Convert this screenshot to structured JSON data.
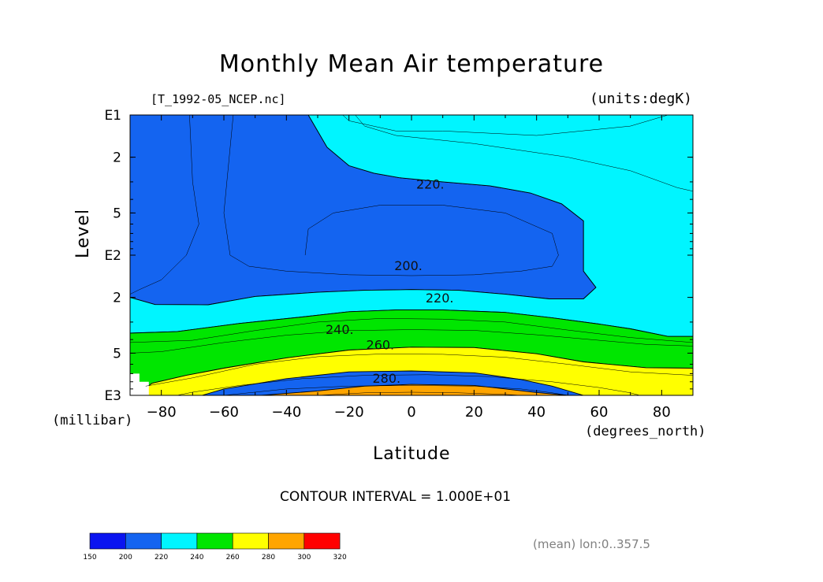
{
  "title": "Monthly Mean Air temperature",
  "file_label": "[T_1992-05_NCEP.nc]",
  "units_label": "(units:degK)",
  "y_axis_label": "Level",
  "y_units": "(millibar)",
  "x_axis_label": "Latitude",
  "x_units": "(degrees_north)",
  "contour_interval": "CONTOUR INTERVAL = 1.000E+01",
  "mean_note": "(mean) lon:0..357.5",
  "chart_data": {
    "type": "heatmap",
    "subtype": "filled contour",
    "title": "Monthly Mean Air temperature",
    "xlabel": "Latitude",
    "ylabel": "Level",
    "xlim": [
      -90,
      90
    ],
    "ylim_mb": [
      1000,
      10
    ],
    "y_scale": "log",
    "grid": false,
    "x_ticks": [
      -80,
      -60,
      -40,
      -20,
      0,
      20,
      40,
      60,
      80
    ],
    "x_tick_labels": [
      "−80",
      "−60",
      "−40",
      "−20",
      "0",
      "20",
      "40",
      "60",
      "80"
    ],
    "y_ticks": [
      {
        "value_mb": 10,
        "label": "E1"
      },
      {
        "value_mb": 20,
        "label": "2"
      },
      {
        "value_mb": 50,
        "label": "5"
      },
      {
        "value_mb": 100,
        "label": "E2"
      },
      {
        "value_mb": 200,
        "label": "2"
      },
      {
        "value_mb": 500,
        "label": "5"
      },
      {
        "value_mb": 1000,
        "label": "E3"
      }
    ],
    "contour_levels": [
      150,
      200,
      220,
      240,
      260,
      280,
      300,
      320
    ],
    "colorbar": {
      "labels": [
        "150",
        "200",
        "220",
        "240",
        "260",
        "280",
        "300",
        "320"
      ],
      "colors": [
        "#0a14f0",
        "#1464f0",
        "#00f5ff",
        "#00e600",
        "#ffff00",
        "#ffa500",
        "#ff0000"
      ],
      "placement": "bottom-left"
    },
    "contour_labels": [
      {
        "text": "220.",
        "lat": 6,
        "mb": 31
      },
      {
        "text": "200.",
        "lat": -1,
        "mb": 118
      },
      {
        "text": "220.",
        "lat": 9,
        "mb": 201
      },
      {
        "text": "240.",
        "lat": -23,
        "mb": 338
      },
      {
        "text": "260.",
        "lat": -10,
        "mb": 433
      },
      {
        "text": "280.",
        "lat": -8,
        "mb": 750
      }
    ],
    "bands": [
      {
        "value": 200,
        "color": "#0a14f0",
        "polygon": [
          [
            -90,
            10
          ],
          [
            -81,
            10
          ],
          [
            -79,
            14
          ],
          [
            -72,
            21
          ],
          [
            -75,
            37
          ],
          [
            -82,
            55
          ],
          [
            -90,
            66
          ]
        ]
      },
      {
        "value": 200,
        "color": "#0a14f0",
        "polygon": [
          [
            -19,
            100
          ],
          [
            -13,
            74
          ],
          [
            -4,
            73
          ],
          [
            11,
            75
          ],
          [
            20,
            100
          ],
          [
            13,
            121
          ],
          [
            -4,
            124
          ],
          [
            -16,
            116
          ]
        ]
      },
      {
        "value": 210,
        "color": "#1464f0",
        "polygon": [
          [
            -90,
            10
          ],
          [
            -33,
            10
          ],
          [
            -27,
            17
          ],
          [
            -20,
            23
          ],
          [
            -12,
            26
          ],
          [
            -4,
            28
          ],
          [
            10,
            30
          ],
          [
            25,
            32
          ],
          [
            38,
            36
          ],
          [
            48,
            43
          ],
          [
            55,
            57
          ],
          [
            55,
            78
          ],
          [
            55,
            130
          ],
          [
            59,
            170
          ],
          [
            55,
            205
          ],
          [
            44,
            205
          ],
          [
            30,
            190
          ],
          [
            15,
            178
          ],
          [
            0,
            176
          ],
          [
            -15,
            178
          ],
          [
            -30,
            184
          ],
          [
            -50,
            197
          ],
          [
            -65,
            226
          ],
          [
            -82,
            225
          ],
          [
            -90,
            200
          ]
        ]
      },
      {
        "value": 230,
        "color": "#00f5ff",
        "polygon": [
          [
            -90,
            294
          ],
          [
            -90,
            200
          ],
          [
            -82,
            225
          ],
          [
            -65,
            226
          ],
          [
            -50,
            197
          ],
          [
            -30,
            184
          ],
          [
            -15,
            178
          ],
          [
            0,
            176
          ],
          [
            15,
            178
          ],
          [
            30,
            190
          ],
          [
            44,
            205
          ],
          [
            55,
            205
          ],
          [
            59,
            170
          ],
          [
            55,
            130
          ],
          [
            55,
            78
          ],
          [
            55,
            57
          ],
          [
            48,
            43
          ],
          [
            38,
            36
          ],
          [
            25,
            32
          ],
          [
            10,
            30
          ],
          [
            -4,
            28
          ],
          [
            -12,
            26
          ],
          [
            -20,
            23
          ],
          [
            -27,
            17
          ],
          [
            -33,
            10
          ],
          [
            90,
            10
          ],
          [
            90,
            380
          ],
          [
            82,
            380
          ],
          [
            70,
            335
          ],
          [
            60,
            310
          ],
          [
            45,
            280
          ],
          [
            30,
            256
          ],
          [
            10,
            246
          ],
          [
            -5,
            246
          ],
          [
            -20,
            253
          ],
          [
            -35,
            276
          ],
          [
            -55,
            307
          ],
          [
            -75,
            351
          ],
          [
            -90,
            360
          ]
        ]
      },
      {
        "value": 250,
        "color": "#00e600",
        "polygon": [
          [
            -90,
            360
          ],
          [
            -75,
            351
          ],
          [
            -55,
            307
          ],
          [
            -35,
            276
          ],
          [
            -20,
            253
          ],
          [
            -5,
            246
          ],
          [
            10,
            246
          ],
          [
            30,
            256
          ],
          [
            45,
            280
          ],
          [
            60,
            310
          ],
          [
            70,
            335
          ],
          [
            82,
            380
          ],
          [
            90,
            380
          ],
          [
            90,
            640
          ],
          [
            75,
            635
          ],
          [
            55,
            577
          ],
          [
            40,
            505
          ],
          [
            20,
            456
          ],
          [
            0,
            453
          ],
          [
            -20,
            475
          ],
          [
            -40,
            540
          ],
          [
            -60,
            640
          ],
          [
            -72,
            720
          ],
          [
            -83,
            820
          ],
          [
            -88,
            1000
          ],
          [
            -90,
            1000
          ]
        ]
      },
      {
        "value": 270,
        "color": "#ffff00",
        "polygon": [
          [
            -67,
            1000
          ],
          [
            -60,
            900
          ],
          [
            -40,
            760
          ],
          [
            -20,
            680
          ],
          [
            0,
            670
          ],
          [
            20,
            690
          ],
          [
            35,
            770
          ],
          [
            45,
            860
          ],
          [
            55,
            1000
          ],
          [
            90,
            1000
          ],
          [
            90,
            640
          ],
          [
            75,
            635
          ],
          [
            55,
            577
          ],
          [
            40,
            505
          ],
          [
            20,
            456
          ],
          [
            0,
            453
          ],
          [
            -20,
            475
          ],
          [
            -40,
            540
          ],
          [
            -60,
            640
          ],
          [
            -72,
            720
          ],
          [
            -83,
            820
          ],
          [
            -88,
            1000
          ]
        ]
      },
      {
        "value": 290,
        "color": "#ffa500",
        "polygon": [
          [
            -48,
            1000
          ],
          [
            -30,
            930
          ],
          [
            -15,
            860
          ],
          [
            0,
            835
          ],
          [
            20,
            850
          ],
          [
            40,
            955
          ],
          [
            50,
            1000
          ]
        ]
      }
    ],
    "contour_lines": [
      [
        [
          -71,
          10
        ],
        [
          -70,
          30
        ],
        [
          -68,
          60
        ],
        [
          -72,
          100
        ],
        [
          -80,
          150
        ],
        [
          -87,
          176
        ],
        [
          -90,
          190
        ]
      ],
      [
        [
          -57,
          10
        ],
        [
          -60,
          50
        ],
        [
          -58,
          100
        ],
        [
          -52,
          120
        ],
        [
          -40,
          130
        ],
        [
          -20,
          138
        ],
        [
          0,
          140
        ],
        [
          20,
          138
        ],
        [
          35,
          130
        ],
        [
          45,
          120
        ],
        [
          47,
          100
        ],
        [
          45,
          70
        ],
        [
          30,
          50
        ],
        [
          10,
          44
        ],
        [
          -10,
          44
        ],
        [
          -25,
          50
        ],
        [
          -33,
          65
        ],
        [
          -34,
          100
        ]
      ],
      [
        [
          -90,
          420
        ],
        [
          -70,
          405
        ],
        [
          -50,
          345
        ],
        [
          -30,
          300
        ],
        [
          -10,
          283
        ],
        [
          10,
          286
        ],
        [
          30,
          300
        ],
        [
          50,
          342
        ],
        [
          70,
          387
        ],
        [
          90,
          420
        ]
      ],
      [
        [
          -90,
          500
        ],
        [
          -80,
          488
        ],
        [
          -60,
          420
        ],
        [
          -40,
          372
        ],
        [
          -20,
          345
        ],
        [
          0,
          340
        ],
        [
          20,
          344
        ],
        [
          40,
          370
        ],
        [
          60,
          405
        ],
        [
          75,
          433
        ],
        [
          90,
          445
        ]
      ],
      [
        [
          -85,
          860
        ],
        [
          -70,
          750
        ],
        [
          -50,
          600
        ],
        [
          -30,
          530
        ],
        [
          -10,
          507
        ],
        [
          10,
          510
        ],
        [
          30,
          535
        ],
        [
          50,
          600
        ],
        [
          70,
          680
        ],
        [
          90,
          720
        ]
      ],
      [
        [
          -75,
          1000
        ],
        [
          -70,
          950
        ],
        [
          -55,
          850
        ],
        [
          -35,
          760
        ],
        [
          -15,
          720
        ],
        [
          5,
          713
        ],
        [
          25,
          735
        ],
        [
          45,
          800
        ],
        [
          60,
          880
        ],
        [
          70,
          960
        ],
        [
          73,
          1000
        ]
      ],
      [
        [
          -60,
          1000
        ],
        [
          -40,
          900
        ],
        [
          -20,
          860
        ],
        [
          0,
          850
        ],
        [
          20,
          860
        ],
        [
          35,
          900
        ],
        [
          45,
          960
        ],
        [
          50,
          1000
        ]
      ],
      [
        [
          -30,
          1000
        ],
        [
          -15,
          960
        ],
        [
          0,
          950
        ],
        [
          15,
          960
        ],
        [
          30,
          985
        ],
        [
          35,
          1000
        ]
      ],
      [
        [
          82,
          10
        ],
        [
          70,
          12
        ],
        [
          40,
          14
        ],
        [
          10,
          13
        ],
        [
          -5,
          13
        ],
        [
          -20,
          11
        ],
        [
          -22,
          10
        ]
      ],
      [
        [
          -18,
          10
        ],
        [
          -15,
          12
        ],
        [
          -5,
          14
        ],
        [
          20,
          16
        ],
        [
          50,
          20
        ],
        [
          70,
          25
        ],
        [
          85,
          33
        ],
        [
          90,
          35
        ]
      ]
    ],
    "missing_region": [
      [
        -90,
        700
      ],
      [
        -87,
        700
      ],
      [
        -87,
        800
      ],
      [
        -84,
        800
      ],
      [
        -84,
        1000
      ],
      [
        -90,
        1000
      ]
    ]
  }
}
